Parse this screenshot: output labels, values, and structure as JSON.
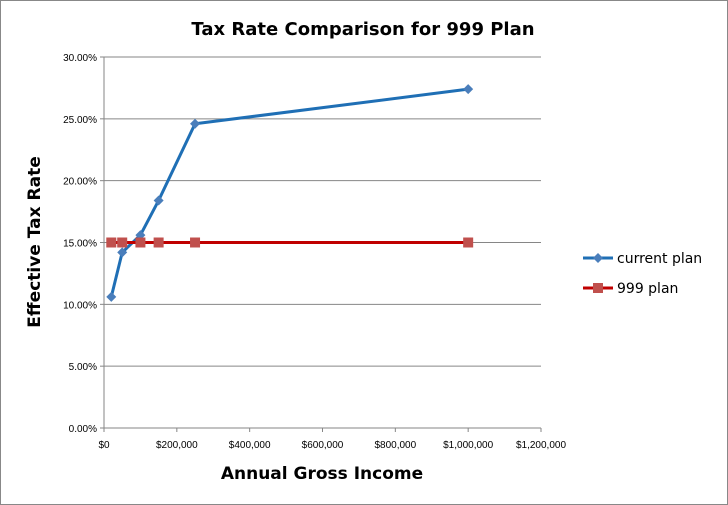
{
  "chart_data": {
    "type": "line",
    "title": "Tax Rate Comparison for 999 Plan",
    "xlabel": "Annual Gross Income",
    "ylabel": "Effective Tax Rate",
    "xlim": [
      0,
      1200000
    ],
    "ylim": [
      0,
      0.3
    ],
    "x_ticks": [
      0,
      200000,
      400000,
      600000,
      800000,
      1000000,
      1200000
    ],
    "x_tick_labels": [
      "$0",
      "$200,000",
      "$400,000",
      "$600,000",
      "$800,000",
      "$1,000,000",
      "$1,200,000"
    ],
    "y_ticks": [
      0,
      0.05,
      0.1,
      0.15,
      0.2,
      0.25,
      0.3
    ],
    "y_tick_labels": [
      "0.00%",
      "5.00%",
      "10.00%",
      "15.00%",
      "20.00%",
      "25.00%",
      "30.00%"
    ],
    "grid": "horizontal",
    "legend_position": "right",
    "x": [
      20000,
      50000,
      100000,
      150000,
      250000,
      1000000
    ],
    "series": [
      {
        "name": "current plan",
        "color": "#4a7ebb",
        "line_color": "#1f6fb5",
        "marker": "diamond",
        "values": [
          0.106,
          0.142,
          0.156,
          0.184,
          0.246,
          0.274
        ]
      },
      {
        "name": "999 plan",
        "color": "#c0504d",
        "line_color": "#c00000",
        "marker": "square",
        "values": [
          0.15,
          0.15,
          0.15,
          0.15,
          0.15,
          0.15
        ]
      }
    ]
  }
}
